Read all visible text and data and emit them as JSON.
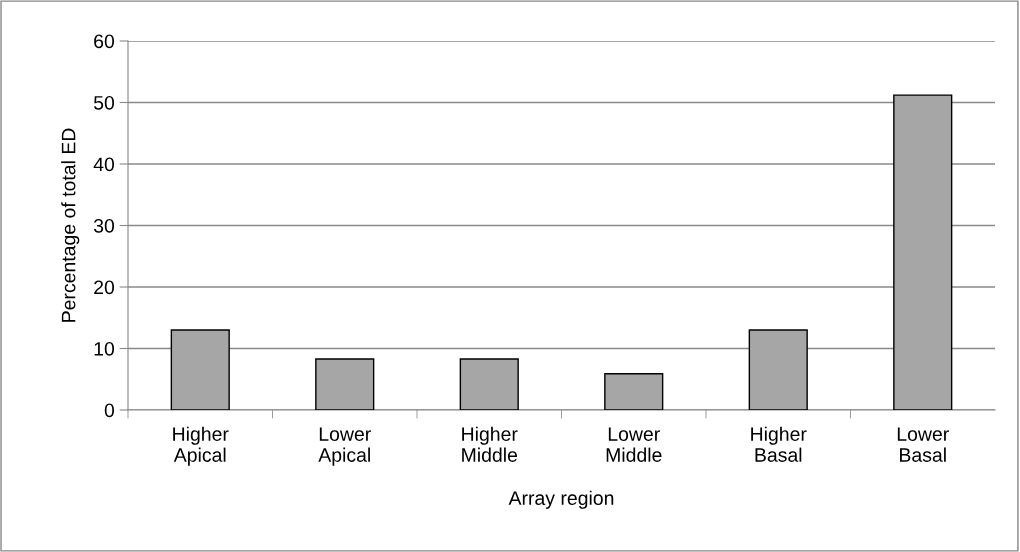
{
  "chart_data": {
    "type": "bar",
    "xlabel": "Array region",
    "ylabel": "Percentage of total ED",
    "categories": [
      "Higher\nApical",
      "Lower\nApical",
      "Higher\nMiddle",
      "Lower\nMiddle",
      "Higher\nBasal",
      "Lower\nBasal"
    ],
    "values": [
      13.0,
      8.3,
      8.3,
      5.9,
      13.0,
      51.2
    ],
    "color": "#a6a6a6",
    "ylim": [
      0,
      60
    ],
    "yticks": [
      0,
      10,
      20,
      30,
      40,
      50,
      60
    ],
    "grid": "y",
    "legend": false
  }
}
